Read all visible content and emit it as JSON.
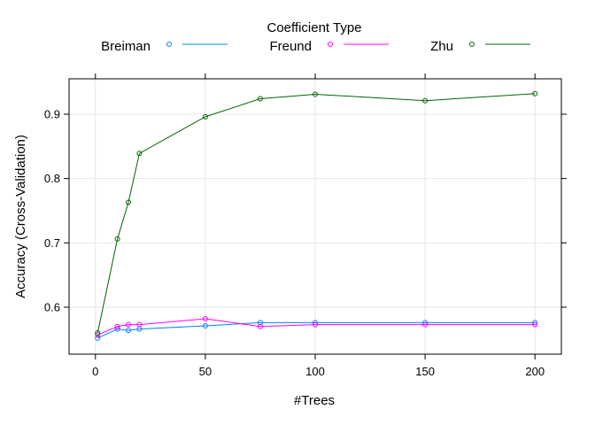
{
  "chart_data": {
    "type": "line",
    "title": "",
    "xlabel": "#Trees",
    "ylabel": "Accuracy (Cross-Validation)",
    "xlim": [
      -12,
      212
    ],
    "ylim": [
      0.527,
      0.955
    ],
    "xticks": [
      0,
      50,
      100,
      150,
      200
    ],
    "yticks": [
      0.6,
      0.7,
      0.8,
      0.9
    ],
    "xtick_labels": [
      "0",
      "50",
      "100",
      "150",
      "200"
    ],
    "ytick_labels": [
      "0.6",
      "0.7",
      "0.8",
      "0.9"
    ],
    "grid": true,
    "legend_title": "Coefficient Type",
    "legend_position": "top",
    "x": [
      1,
      10,
      15,
      20,
      50,
      75,
      100,
      150,
      200
    ],
    "series": [
      {
        "name": "Breiman",
        "color": "#0080ff",
        "marker": "circle",
        "values": [
          0.552,
          0.566,
          0.564,
          0.566,
          0.571,
          0.576,
          0.576,
          0.576,
          0.576
        ]
      },
      {
        "name": "Freund",
        "color": "#ff00ff",
        "marker": "circle",
        "values": [
          0.557,
          0.57,
          0.573,
          0.573,
          0.582,
          0.57,
          0.573,
          0.573,
          0.573
        ]
      },
      {
        "name": "Zhu",
        "color": "#006400",
        "marker": "circle",
        "values": [
          0.56,
          0.706,
          0.763,
          0.839,
          0.896,
          0.924,
          0.931,
          0.921,
          0.932
        ]
      }
    ]
  }
}
